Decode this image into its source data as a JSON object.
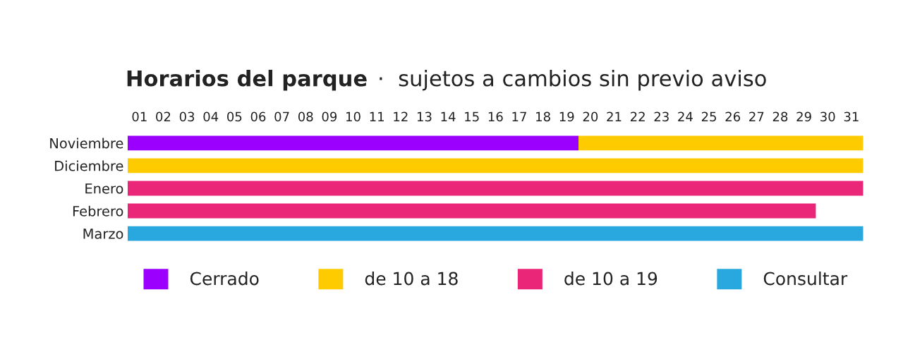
{
  "chart_data": {
    "type": "bar",
    "orientation": "horizontal",
    "stacked": true,
    "title": "Horarios del parque",
    "subtitle": "·  sujetos a cambios sin previo aviso",
    "categories": [
      "Noviembre",
      "Diciembre",
      "Enero",
      "Febrero",
      "Marzo"
    ],
    "series": [
      {
        "name": "Cerrado",
        "color": "#9b00ff",
        "values": [
          19,
          null,
          null,
          null,
          null
        ]
      },
      {
        "name": "de 10 a 18",
        "color": "#fecb00",
        "values": [
          12,
          31,
          null,
          null,
          null
        ]
      },
      {
        "name": "de 10 a 19",
        "color": "#ea2679",
        "values": [
          null,
          null,
          31,
          29,
          null
        ]
      },
      {
        "name": "Consultar",
        "color": "#29a8df",
        "values": [
          null,
          null,
          null,
          null,
          31
        ]
      }
    ],
    "xlim": [
      0,
      31
    ],
    "xticks": [
      {
        "value": 0.5,
        "label": "01"
      },
      {
        "value": 1.5,
        "label": "02"
      },
      {
        "value": 2.5,
        "label": "03"
      },
      {
        "value": 3.5,
        "label": "04"
      },
      {
        "value": 4.5,
        "label": "05"
      },
      {
        "value": 5.5,
        "label": "06"
      },
      {
        "value": 6.5,
        "label": "07"
      },
      {
        "value": 7.5,
        "label": "08"
      },
      {
        "value": 8.5,
        "label": "09"
      },
      {
        "value": 9.5,
        "label": "10"
      },
      {
        "value": 10.5,
        "label": "11"
      },
      {
        "value": 11.5,
        "label": "12"
      },
      {
        "value": 12.5,
        "label": "13"
      },
      {
        "value": 13.5,
        "label": "14"
      },
      {
        "value": 14.5,
        "label": "15"
      },
      {
        "value": 15.5,
        "label": "16"
      },
      {
        "value": 16.5,
        "label": "17"
      },
      {
        "value": 17.5,
        "label": "18"
      },
      {
        "value": 18.5,
        "label": "19"
      },
      {
        "value": 19.5,
        "label": "20"
      },
      {
        "value": 20.5,
        "label": "21"
      },
      {
        "value": 21.5,
        "label": "22"
      },
      {
        "value": 22.5,
        "label": "23"
      },
      {
        "value": 23.5,
        "label": "24"
      },
      {
        "value": 24.5,
        "label": "25"
      },
      {
        "value": 25.5,
        "label": "26"
      },
      {
        "value": 26.5,
        "label": "27"
      },
      {
        "value": 27.5,
        "label": "28"
      },
      {
        "value": 28.5,
        "label": "29"
      },
      {
        "value": 29.5,
        "label": "30"
      },
      {
        "value": 30.5,
        "label": "31"
      }
    ],
    "legend": "bottom",
    "grid": false
  }
}
